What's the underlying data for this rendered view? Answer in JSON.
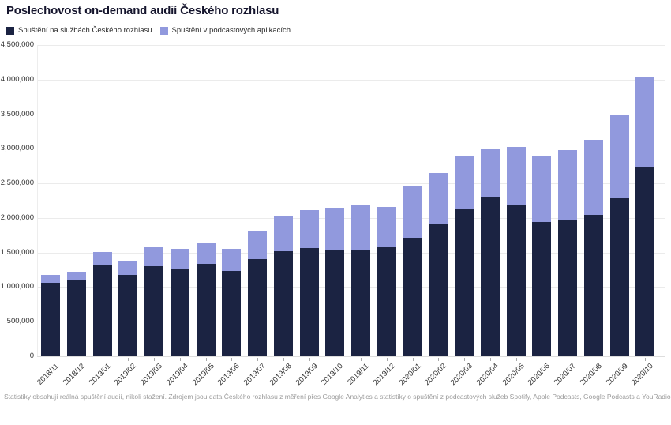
{
  "title": "Poslechovost on-demand audií Českého rozhlasu",
  "footer": "Statistiky obsahují reálná spuštění audií, nikoli stažení. Zdrojem jsou data Českého rozhlasu z měření přes Google Analytics a statistiky o spuštění z podcastových služeb Spotify, Apple Podcasts, Google Podcasts a YouRadio Talk",
  "colors": {
    "series_cro": "#1b2342",
    "series_podcast": "#9199dd",
    "gridline": "#ebebeb",
    "axis_text": "#333333",
    "footer_text": "#9b9b9b"
  },
  "chart_data": {
    "type": "bar",
    "stacked": true,
    "grid": true,
    "legend_position": "top-left",
    "title": "Poslechovost on-demand audií Českého rozhlasu",
    "xlabel": "",
    "ylabel": "",
    "ylim": [
      0,
      4500000
    ],
    "ytick_step": 500000,
    "ytick_labels": [
      "0",
      "500,000",
      "1,000,000",
      "1,500,000",
      "2,000,000",
      "2,500,000",
      "3,000,000",
      "3,500,000",
      "4,000,000",
      "4,500,000"
    ],
    "categories": [
      "2018/11",
      "2018/12",
      "2019/01",
      "2019/02",
      "2019/03",
      "2019/04",
      "2019/05",
      "2019/06",
      "2019/07",
      "2019/08",
      "2019/09",
      "2019/10",
      "2019/11",
      "2019/12",
      "2020/01",
      "2020/02",
      "2020/03",
      "2020/04",
      "2020/05",
      "2020/06",
      "2020/07",
      "2020/08",
      "2020/09",
      "2020/10"
    ],
    "series": [
      {
        "name": "Spuštění na službách Českého rozhlasu",
        "color": "#1b2342",
        "values": [
          1065000,
          1095000,
          1320000,
          1175000,
          1305000,
          1265000,
          1335000,
          1230000,
          1400000,
          1515000,
          1565000,
          1535000,
          1540000,
          1580000,
          1715000,
          1920000,
          2140000,
          2305000,
          2190000,
          1945000,
          1970000,
          2045000,
          2285000,
          2740000
        ]
      },
      {
        "name": "Spuštění v podcastových aplikacích",
        "color": "#9199dd",
        "values": [
          110000,
          130000,
          185000,
          210000,
          270000,
          290000,
          315000,
          325000,
          405000,
          520000,
          545000,
          615000,
          640000,
          575000,
          740000,
          735000,
          755000,
          690000,
          835000,
          955000,
          1010000,
          1085000,
          1195000,
          1290000
        ]
      }
    ]
  }
}
